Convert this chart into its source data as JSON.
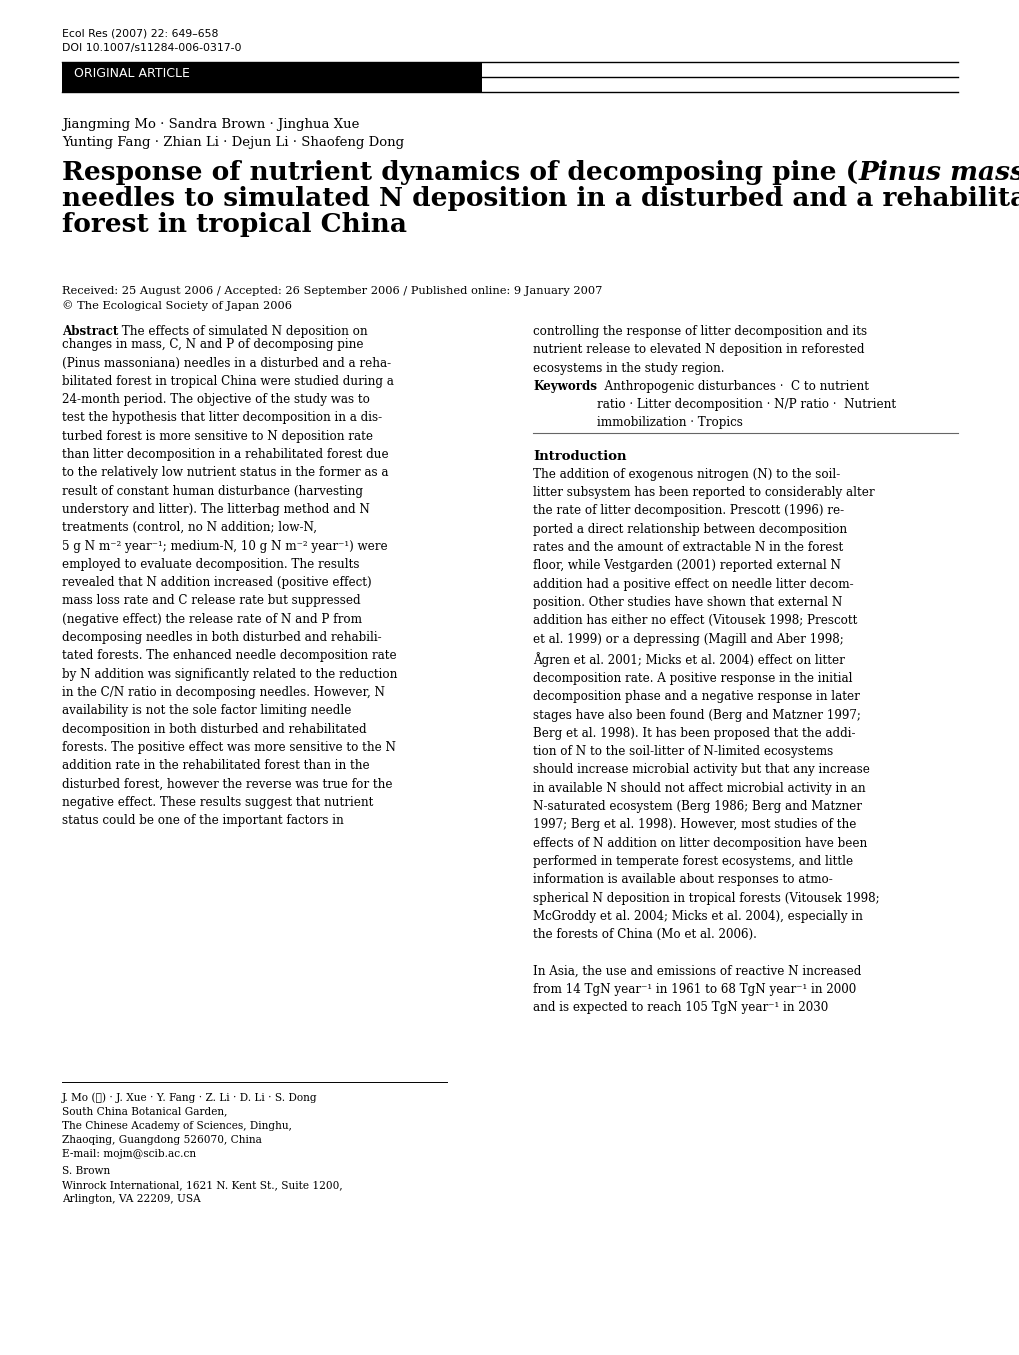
{
  "journal_line1": "Ecol Res (2007) 22: 649–658",
  "journal_line2": "DOI 10.1007/s11284-006-0317-0",
  "section_label": "ORIGINAL ARTICLE",
  "authors_line1": "Jiangming Mo · Sandra Brown · Jinghua Xue",
  "authors_line2": "Yunting Fang · Zhian Li · Dejun Li · Shaofeng Dong",
  "title_part1": "Response of nutrient dynamics of decomposing pine (",
  "title_italic": "Pinus massoniana",
  "title_part2": ")",
  "title_line2": "needles to simulated N deposition in a disturbed and a rehabilitated",
  "title_line3": "forest in tropical China",
  "received_line": "Received: 25 August 2006 / Accepted: 26 September 2006 / Published online: 9 January 2007",
  "copyright_line": "© The Ecological Society of Japan 2006",
  "abs_col1_line1_bold": "Abstract",
  "abs_col1_line1_rest": " The effects of simulated N deposition on",
  "abs_col1_rest": "changes in mass, C, N and P of decomposing pine\n(Pinus massoniana) needles in a disturbed and a reha-\nbilitated forest in tropical China were studied during a\n24-month period. The objective of the study was to\ntest the hypothesis that litter decomposition in a dis-\nturbed forest is more sensitive to N deposition rate\nthan litter decomposition in a rehabilitated forest due\nto the relatively low nutrient status in the former as a\nresult of constant human disturbance (harvesting\nunderstory and litter). The litterbag method and N\ntreatments (control, no N addition; low-N,\n5 g N m⁻² year⁻¹; medium-N, 10 g N m⁻² year⁻¹) were\nemployed to evaluate decomposition. The results\nrevealed that N addition increased (positive effect)\nmass loss rate and C release rate but suppressed\n(negative effect) the release rate of N and P from\ndecomposing needles in both disturbed and rehabili-\ntated forests. The enhanced needle decomposition rate\nby N addition was significantly related to the reduction\nin the C/N ratio in decomposing needles. However, N\navailability is not the sole factor limiting needle\ndecomposition in both disturbed and rehabilitated\nforests. The positive effect was more sensitive to the N\naddition rate in the rehabilitated forest than in the\ndisturbed forest, however the reverse was true for the\nnegative effect. These results suggest that nutrient\nstatus could be one of the important factors in",
  "abs_col2": "controlling the response of litter decomposition and its\nnutrient release to elevated N deposition in reforested\necosystems in the study region.",
  "kw_bold": "Keywords",
  "kw_rest": "  Anthropogenic disturbances ·  C to nutrient\nratio · Litter decomposition · N/P ratio ·  Nutrient\nimmobilization · Tropics",
  "intro_head": "Introduction",
  "intro_col2": "The addition of exogenous nitrogen (N) to the soil-\nlitter subsystem has been reported to considerably alter\nthe rate of litter decomposition. Prescott (1996) re-\nported a direct relationship between decomposition\nrates and the amount of extractable N in the forest\nfloor, while Vestgarden (2001) reported external N\naddition had a positive effect on needle litter decom-\nposition. Other studies have shown that external N\naddition has either no effect (Vitousek 1998; Prescott\net al. 1999) or a depressing (Magill and Aber 1998;\nÅgren et al. 2001; Micks et al. 2004) effect on litter\ndecomposition rate. A positive response in the initial\ndecomposition phase and a negative response in later\nstages have also been found (Berg and Matzner 1997;\nBerg et al. 1998). It has been proposed that the addi-\ntion of N to the soil-litter of N-limited ecosystems\nshould increase microbial activity but that any increase\nin available N should not affect microbial activity in an\nN-saturated ecosystem (Berg 1986; Berg and Matzner\n1997; Berg et al. 1998). However, most studies of the\neffects of N addition on litter decomposition have been\nperformed in temperate forest ecosystems, and little\ninformation is available about responses to atmo-\nspherical N deposition in tropical forests (Vitousek 1998;\nMcGroddy et al. 2004; Micks et al. 2004), especially in\nthe forests of China (Mo et al. 2006).\n\nIn Asia, the use and emissions of reactive N increased\nfrom 14 TgN year⁻¹ in 1961 to 68 TgN year⁻¹ in 2000\nand is expected to reach 105 TgN year⁻¹ in 2030",
  "footnote1": "J. Mo (✉) · J. Xue · Y. Fang · Z. Li · D. Li · S. Dong\nSouth China Botanical Garden,\nThe Chinese Academy of Sciences, Dinghu,\nZhaoqing, Guangdong 526070, China\nE-mail: mojm@scib.ac.cn",
  "footnote2": "S. Brown\nWinrock International, 1621 N. Kent St., Suite 1200,\nArlington, VA 22209, USA",
  "bg_color": "#ffffff",
  "text_color": "#000000",
  "header_bg": "#000000",
  "header_text": "#ffffff"
}
